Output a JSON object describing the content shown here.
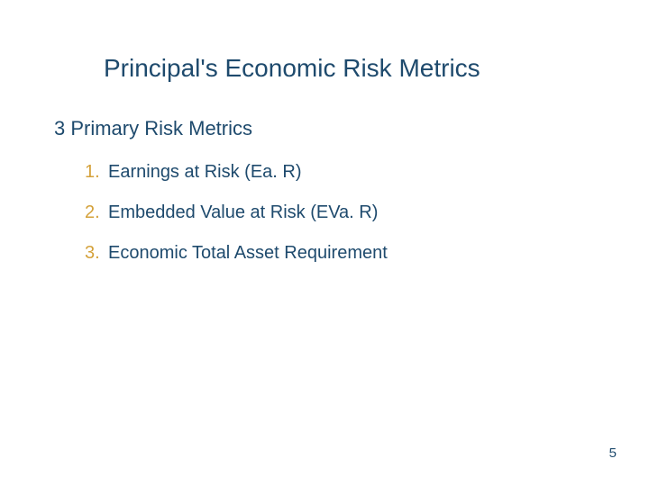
{
  "slide": {
    "title": "Principal's Economic Risk Metrics",
    "subtitle": "3 Primary Risk Metrics",
    "items": [
      {
        "number": "1.",
        "text": "Earnings at Risk (Ea. R)"
      },
      {
        "number": "2.",
        "text": "Embedded Value at Risk (EVa. R)"
      },
      {
        "number": "3.",
        "text": "Economic Total Asset Requirement"
      }
    ],
    "pageNumber": "5"
  },
  "colors": {
    "text_primary": "#1e4a6d",
    "accent": "#d4a13a",
    "background": "#ffffff"
  },
  "typography": {
    "title_fontsize": 28,
    "subtitle_fontsize": 22,
    "body_fontsize": 20,
    "pagenum_fontsize": 15,
    "font_family": "Arial"
  }
}
